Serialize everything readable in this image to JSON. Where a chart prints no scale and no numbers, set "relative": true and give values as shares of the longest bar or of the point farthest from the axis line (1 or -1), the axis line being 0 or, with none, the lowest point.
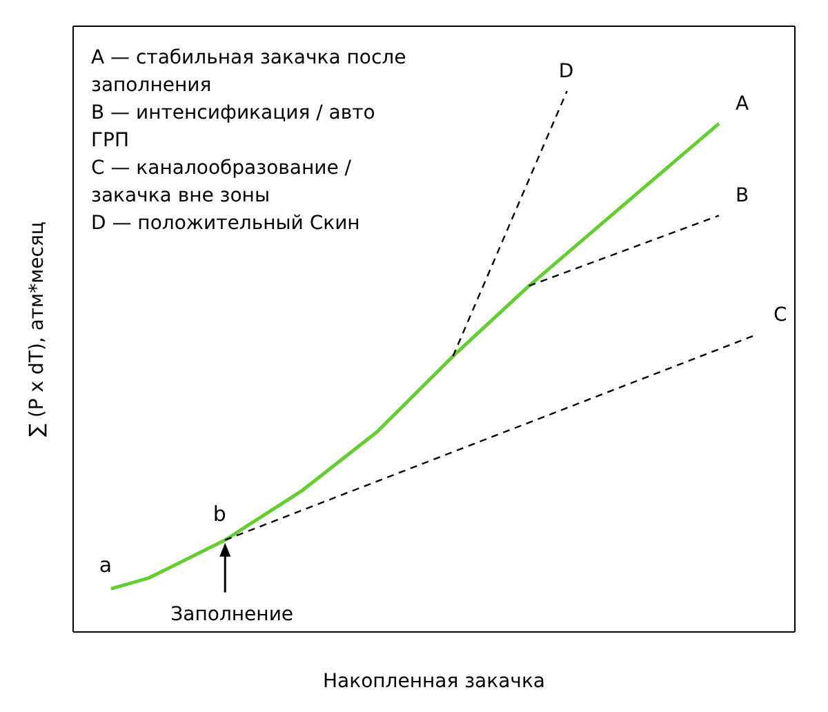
{
  "chart_data": {
    "type": "line",
    "relative": true,
    "xlabel": "Накопленная закачка",
    "ylabel": "∑ (P x dT), атм*месяц",
    "marker": "none",
    "categories": [
      null,
      null,
      null,
      null,
      null,
      null,
      null,
      null,
      null,
      null,
      null,
      null,
      null,
      null,
      null,
      null,
      null,
      null,
      null,
      null
    ],
    "series": [
      {
        "name": "A",
        "color": "#66cc33",
        "line_style": "solid",
        "values": [
          null,
          0.08,
          0.1,
          null,
          0.17,
          null,
          0.26,
          null,
          0.37,
          null,
          0.51,
          null,
          0.64,
          null,
          0.76,
          null,
          null,
          0.94,
          null,
          null
        ]
      },
      {
        "name": "B",
        "color": "#000000",
        "line_style": "dashed",
        "values": [
          null,
          null,
          null,
          null,
          null,
          null,
          null,
          null,
          null,
          null,
          null,
          null,
          0.64,
          null,
          null,
          null,
          null,
          0.77,
          null,
          null
        ]
      },
      {
        "name": "C",
        "color": "#000000",
        "line_style": "dashed",
        "values": [
          null,
          null,
          null,
          null,
          0.17,
          null,
          null,
          null,
          null,
          null,
          null,
          null,
          null,
          null,
          null,
          null,
          null,
          null,
          0.55,
          null
        ]
      },
      {
        "name": "D",
        "color": "#000000",
        "line_style": "dashed",
        "values": [
          null,
          null,
          null,
          null,
          null,
          null,
          null,
          null,
          null,
          null,
          0.51,
          null,
          null,
          1,
          null,
          null,
          null,
          null,
          null,
          null
        ]
      }
    ],
    "annotations": [
      "A — стабильная закачка после заполнения",
      "B — интенсификация / авто ГРП",
      "C — каналообразование / закачка вне зоны",
      "D — положительный Скин",
      "a",
      "b",
      "Заполнение"
    ]
  }
}
